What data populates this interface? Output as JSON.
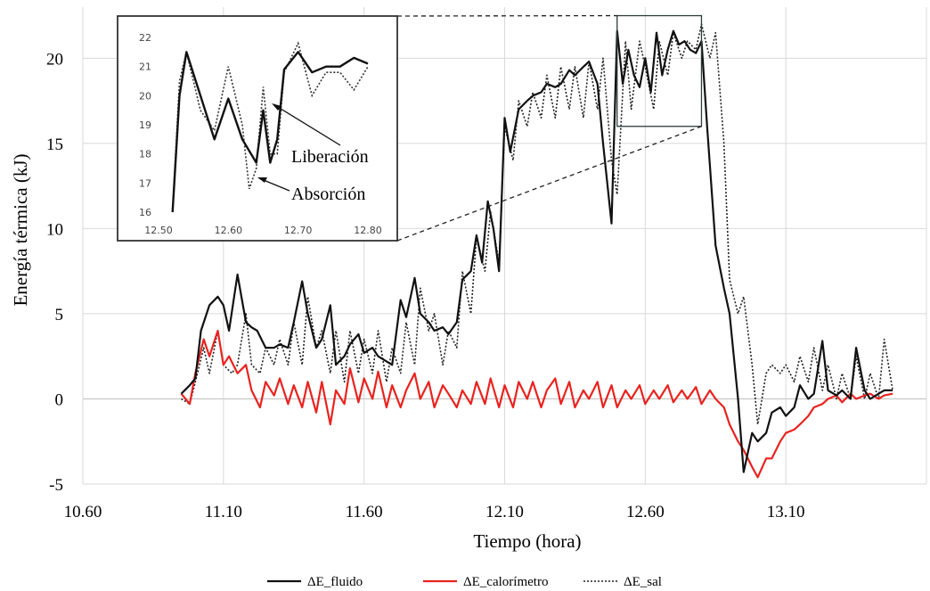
{
  "chart_data": {
    "type": "line",
    "xlabel": "Tiempo (hora)",
    "ylabel": "Energía térmica (kJ)",
    "xlim": [
      10.6,
      13.6
    ],
    "ylim": [
      -5,
      23
    ],
    "xticks": [
      "10.60",
      "11.10",
      "11.60",
      "12.10",
      "12.60",
      "13.10"
    ],
    "yticks": [
      "-5",
      "0",
      "5",
      "10",
      "15",
      "20"
    ],
    "grid": "vertical and horizontal",
    "legend": "bottom",
    "series": [
      {
        "name": "ΔE_fluido",
        "color": "#111111",
        "style": "solid",
        "x": [
          10.95,
          10.98,
          11.0,
          11.02,
          11.05,
          11.08,
          11.1,
          11.12,
          11.15,
          11.18,
          11.2,
          11.22,
          11.25,
          11.28,
          11.3,
          11.33,
          11.35,
          11.38,
          11.4,
          11.43,
          11.45,
          11.48,
          11.5,
          11.53,
          11.55,
          11.58,
          11.6,
          11.63,
          11.65,
          11.68,
          11.7,
          11.73,
          11.75,
          11.78,
          11.8,
          11.83,
          11.85,
          11.88,
          11.9,
          11.93,
          11.95,
          11.98,
          12.0,
          12.02,
          12.04,
          12.06,
          12.08,
          12.1,
          12.12,
          12.15,
          12.18,
          12.2,
          12.23,
          12.25,
          12.28,
          12.3,
          12.33,
          12.35,
          12.38,
          12.4,
          12.43,
          12.45,
          12.48,
          12.5,
          12.52,
          12.54,
          12.56,
          12.58,
          12.6,
          12.62,
          12.64,
          12.66,
          12.68,
          12.7,
          12.72,
          12.74,
          12.76,
          12.78,
          12.8,
          12.82,
          12.85,
          12.88,
          12.9,
          12.93,
          12.95,
          12.98,
          13.0,
          13.03,
          13.05,
          13.08,
          13.1,
          13.13,
          13.15,
          13.18,
          13.2,
          13.23,
          13.25,
          13.28,
          13.3,
          13.33,
          13.35,
          13.38,
          13.4,
          13.43,
          13.45,
          13.48
        ],
        "values": [
          0.3,
          0.8,
          1.2,
          4.0,
          5.5,
          6.0,
          5.5,
          4.0,
          7.3,
          4.5,
          4.2,
          4.0,
          3.0,
          3.0,
          3.2,
          3.0,
          4.5,
          6.9,
          5.0,
          3.0,
          3.5,
          5.5,
          2.0,
          2.5,
          3.2,
          3.8,
          2.7,
          3.0,
          2.5,
          2.2,
          2.0,
          5.8,
          4.8,
          7.1,
          5.0,
          4.5,
          4.0,
          4.2,
          3.8,
          4.5,
          7.0,
          7.5,
          9.6,
          8.0,
          11.6,
          10.0,
          7.5,
          16.5,
          14.5,
          17.0,
          17.5,
          17.8,
          18.0,
          18.5,
          18.3,
          18.5,
          19.3,
          19.0,
          19.5,
          19.8,
          18.5,
          15.0,
          10.3,
          21.6,
          18.5,
          20.5,
          19.0,
          18.3,
          20.0,
          18.0,
          21.5,
          19.0,
          20.5,
          21.6,
          20.8,
          21.0,
          20.5,
          20.3,
          21.0,
          16.0,
          9.0,
          6.5,
          5.0,
          0.0,
          -4.3,
          -2.0,
          -2.5,
          -2.0,
          -0.8,
          -0.5,
          -1.0,
          -0.5,
          0.8,
          0.0,
          0.3,
          3.4,
          0.5,
          0.2,
          0.5,
          0.0,
          3.0,
          0.5,
          0.0,
          0.3,
          0.5,
          0.5
        ]
      },
      {
        "name": "ΔE_calorímetro",
        "color": "#e8231f",
        "style": "solid",
        "x": [
          10.95,
          10.98,
          11.0,
          11.03,
          11.05,
          11.08,
          11.1,
          11.12,
          11.15,
          11.18,
          11.2,
          11.23,
          11.25,
          11.28,
          11.3,
          11.33,
          11.35,
          11.38,
          11.4,
          11.43,
          11.45,
          11.48,
          11.5,
          11.53,
          11.55,
          11.58,
          11.6,
          11.63,
          11.65,
          11.68,
          11.7,
          11.73,
          11.75,
          11.78,
          11.8,
          11.83,
          11.85,
          11.88,
          11.9,
          11.93,
          11.95,
          11.98,
          12.0,
          12.03,
          12.05,
          12.08,
          12.1,
          12.13,
          12.15,
          12.18,
          12.2,
          12.23,
          12.25,
          12.28,
          12.3,
          12.33,
          12.35,
          12.38,
          12.4,
          12.43,
          12.45,
          12.48,
          12.5,
          12.53,
          12.55,
          12.58,
          12.6,
          12.63,
          12.65,
          12.68,
          12.7,
          12.73,
          12.75,
          12.78,
          12.8,
          12.83,
          12.85,
          12.88,
          12.9,
          12.93,
          12.95,
          12.98,
          13.0,
          13.03,
          13.05,
          13.08,
          13.1,
          13.13,
          13.15,
          13.18,
          13.2,
          13.23,
          13.25,
          13.28,
          13.3,
          13.33,
          13.35,
          13.38,
          13.4,
          13.43,
          13.45,
          13.48
        ],
        "values": [
          0.3,
          -0.3,
          1.5,
          3.5,
          2.5,
          4.0,
          2.0,
          2.5,
          1.5,
          2.0,
          0.5,
          -0.5,
          1.0,
          0.2,
          1.2,
          -0.3,
          0.8,
          -0.5,
          1.0,
          -0.8,
          1.0,
          -1.5,
          0.5,
          -0.3,
          1.8,
          -0.2,
          1.2,
          0.0,
          1.6,
          -0.5,
          0.8,
          -0.5,
          0.5,
          1.5,
          0.0,
          1.0,
          -0.5,
          0.8,
          0.3,
          -0.5,
          0.5,
          -0.3,
          1.0,
          -0.3,
          1.2,
          -0.5,
          0.8,
          -0.5,
          1.0,
          0.0,
          1.0,
          -0.5,
          0.5,
          1.2,
          -0.3,
          1.0,
          -0.5,
          0.5,
          0.0,
          1.0,
          -0.5,
          0.8,
          -0.5,
          0.5,
          0.0,
          0.8,
          -0.3,
          0.5,
          0.0,
          0.8,
          -0.2,
          0.5,
          0.0,
          0.7,
          -0.3,
          0.5,
          0.0,
          -0.5,
          -1.5,
          -2.5,
          -3.0,
          -4.0,
          -4.6,
          -3.5,
          -3.5,
          -2.5,
          -2.0,
          -1.8,
          -1.5,
          -1.0,
          -0.5,
          -0.3,
          0.0,
          0.2,
          -0.2,
          0.3,
          0.0,
          0.2,
          0.3,
          0.0,
          0.2,
          0.3
        ]
      },
      {
        "name": "ΔE_sal",
        "color": "#222222",
        "style": "dotted",
        "x": [
          10.95,
          10.98,
          11.0,
          11.03,
          11.05,
          11.08,
          11.1,
          11.13,
          11.15,
          11.18,
          11.2,
          11.23,
          11.25,
          11.28,
          11.3,
          11.33,
          11.35,
          11.38,
          11.4,
          11.43,
          11.45,
          11.48,
          11.5,
          11.53,
          11.55,
          11.58,
          11.6,
          11.63,
          11.65,
          11.68,
          11.7,
          11.73,
          11.75,
          11.78,
          11.8,
          11.83,
          11.85,
          11.88,
          11.9,
          11.93,
          11.95,
          11.98,
          12.0,
          12.03,
          12.05,
          12.08,
          12.1,
          12.13,
          12.15,
          12.18,
          12.2,
          12.23,
          12.25,
          12.28,
          12.3,
          12.33,
          12.35,
          12.38,
          12.4,
          12.43,
          12.45,
          12.48,
          12.5,
          12.53,
          12.55,
          12.58,
          12.6,
          12.63,
          12.65,
          12.68,
          12.7,
          12.73,
          12.75,
          12.78,
          12.8,
          12.83,
          12.85,
          12.88,
          12.9,
          12.93,
          12.95,
          12.98,
          13.0,
          13.03,
          13.05,
          13.08,
          13.1,
          13.13,
          13.15,
          13.18,
          13.2,
          13.23,
          13.25,
          13.28,
          13.3,
          13.33,
          13.35,
          13.38,
          13.4,
          13.43,
          13.45,
          13.48
        ],
        "values": [
          0.0,
          -0.3,
          1.0,
          3.0,
          1.5,
          4.0,
          2.0,
          1.5,
          2.0,
          5.0,
          2.0,
          1.5,
          3.0,
          2.0,
          3.5,
          2.0,
          4.5,
          2.0,
          6.0,
          3.0,
          4.0,
          1.5,
          4.0,
          1.0,
          4.0,
          1.5,
          3.5,
          1.5,
          4.0,
          1.0,
          3.0,
          1.5,
          4.5,
          2.0,
          6.5,
          4.0,
          5.0,
          2.0,
          4.0,
          3.0,
          7.5,
          5.0,
          9.5,
          7.5,
          11.0,
          8.0,
          16.0,
          14.0,
          17.5,
          16.0,
          18.0,
          16.5,
          19.0,
          16.5,
          19.5,
          17.0,
          19.5,
          16.5,
          19.8,
          17.0,
          20.0,
          14.0,
          12.0,
          21.0,
          17.0,
          21.0,
          19.5,
          17.0,
          21.0,
          19.0,
          21.5,
          20.0,
          21.0,
          20.5,
          22.0,
          20.0,
          21.5,
          15.0,
          7.0,
          5.0,
          6.0,
          2.0,
          -1.5,
          1.5,
          2.0,
          1.5,
          2.0,
          1.0,
          2.5,
          1.0,
          3.0,
          0.5,
          2.0,
          0.0,
          1.5,
          0.0,
          2.5,
          0.0,
          1.5,
          0.0,
          3.5,
          0.5
        ]
      }
    ],
    "inset": {
      "xlim": [
        12.5,
        12.8
      ],
      "ylim": [
        16,
        22
      ],
      "xticks": [
        "12.50",
        "12.60",
        "12.70",
        "12.80"
      ],
      "yticks": [
        "16",
        "17",
        "18",
        "19",
        "20",
        "21",
        "22"
      ],
      "fluido": {
        "x": [
          12.52,
          12.53,
          12.54,
          12.56,
          12.58,
          12.6,
          12.62,
          12.64,
          12.65,
          12.66,
          12.67,
          12.68,
          12.7,
          12.72,
          12.74,
          12.76,
          12.78,
          12.8
        ],
        "values": [
          16.0,
          20.0,
          21.5,
          20.0,
          18.5,
          19.9,
          18.5,
          17.7,
          19.5,
          17.7,
          18.5,
          20.9,
          21.5,
          20.8,
          21.0,
          21.0,
          21.3,
          21.1
        ]
      },
      "sal": {
        "x": [
          12.52,
          12.53,
          12.54,
          12.56,
          12.58,
          12.6,
          12.62,
          12.63,
          12.64,
          12.65,
          12.66,
          12.67,
          12.68,
          12.7,
          12.72,
          12.74,
          12.76,
          12.78,
          12.8
        ],
        "values": [
          16.0,
          20.5,
          21.5,
          19.5,
          18.8,
          21.0,
          19.0,
          16.8,
          17.5,
          20.3,
          18.0,
          18.0,
          20.8,
          21.8,
          20.0,
          20.8,
          20.8,
          20.2,
          21.0
        ]
      },
      "annotations": [
        "Liberación",
        "Absorción"
      ]
    }
  }
}
